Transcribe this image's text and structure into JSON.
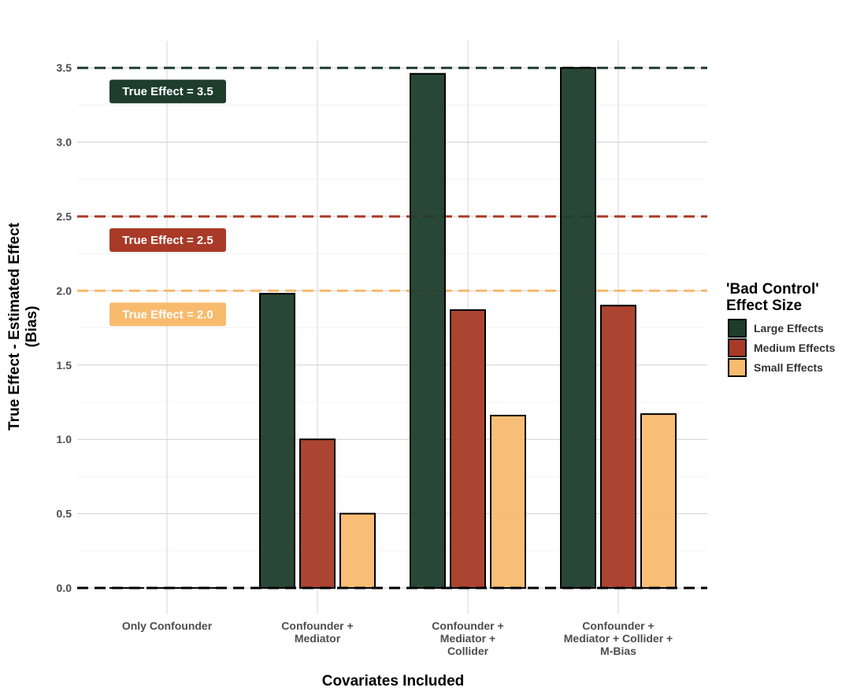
{
  "chart_data": {
    "type": "bar",
    "title": "",
    "xlabel": "Covariates Included",
    "ylabel_lines": [
      "True Effect - Estimated Effect",
      "(Bias)"
    ],
    "categories": [
      [
        "Only Confounder"
      ],
      [
        "Confounder +",
        "Mediator"
      ],
      [
        "Confounder +",
        "Mediator +",
        "Collider"
      ],
      [
        "Confounder +",
        "Mediator + Collider +",
        "M-Bias"
      ]
    ],
    "series": [
      {
        "name": "Large Effects",
        "color": "#1e3d2c",
        "values": [
          0.0,
          1.98,
          3.46,
          3.5
        ]
      },
      {
        "name": "Medium Effects",
        "color": "#a83a27",
        "values": [
          0.0,
          1.0,
          1.87,
          1.9
        ]
      },
      {
        "name": "Small Effects",
        "color": "#f8bb6e",
        "values": [
          0.0,
          0.5,
          1.16,
          1.17
        ]
      }
    ],
    "ylim": [
      0,
      3.5
    ],
    "yticks": [
      "0.0",
      "0.5",
      "1.0",
      "1.5",
      "2.0",
      "2.5",
      "3.0",
      "3.5"
    ],
    "grid": true,
    "legend": {
      "position": "right",
      "title_lines": [
        "'Bad Control'",
        "Effect Size"
      ]
    },
    "reference_lines": [
      {
        "y": 3.5,
        "color": "#1e3d2c",
        "label": "True Effect = 3.5"
      },
      {
        "y": 2.5,
        "color": "#a83a27",
        "label": "True Effect = 2.5"
      },
      {
        "y": 2.0,
        "color": "#f8bb6e",
        "label": "True Effect = 2.0"
      },
      {
        "y": 0.0,
        "color": "#000000",
        "label": ""
      }
    ]
  }
}
